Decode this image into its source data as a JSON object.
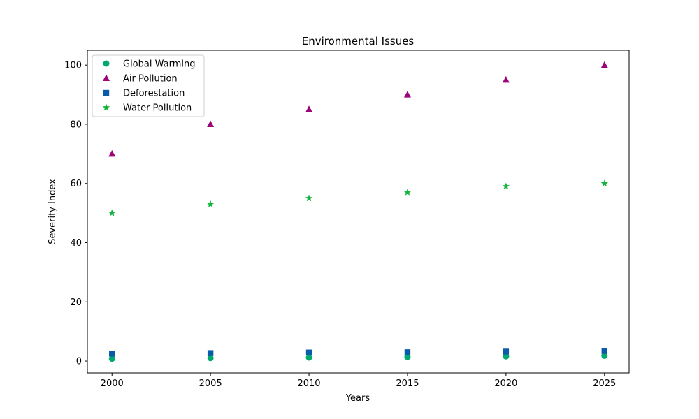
{
  "chart_data": {
    "type": "scatter",
    "title": "Environmental Issues",
    "xlabel": "Years",
    "ylabel": "Severity Index",
    "x": [
      2000,
      2005,
      2010,
      2015,
      2020,
      2025
    ],
    "xlim": [
      1998.75,
      2026.25
    ],
    "ylim": [
      -4.0,
      105.0
    ],
    "xticks": [
      2000,
      2005,
      2010,
      2015,
      2020,
      2025
    ],
    "yticks": [
      0,
      20,
      40,
      60,
      80,
      100
    ],
    "grid": false,
    "legend_position": "top-left",
    "series": [
      {
        "name": "Global Warming",
        "marker": "circle",
        "color": "#00a96e",
        "values": [
          0.8,
          1.0,
          1.2,
          1.4,
          1.6,
          1.8
        ]
      },
      {
        "name": "Air Pollution",
        "marker": "triangle",
        "color": "#9b0579",
        "values": [
          70,
          80,
          85,
          90,
          95,
          100
        ]
      },
      {
        "name": "Deforestation",
        "marker": "square",
        "color": "#0a5ca8",
        "values": [
          2.5,
          2.7,
          2.9,
          3.0,
          3.2,
          3.4
        ]
      },
      {
        "name": "Water Pollution",
        "marker": "star",
        "color": "#14b43c",
        "values": [
          50,
          53,
          55,
          57,
          59,
          60
        ]
      }
    ]
  }
}
